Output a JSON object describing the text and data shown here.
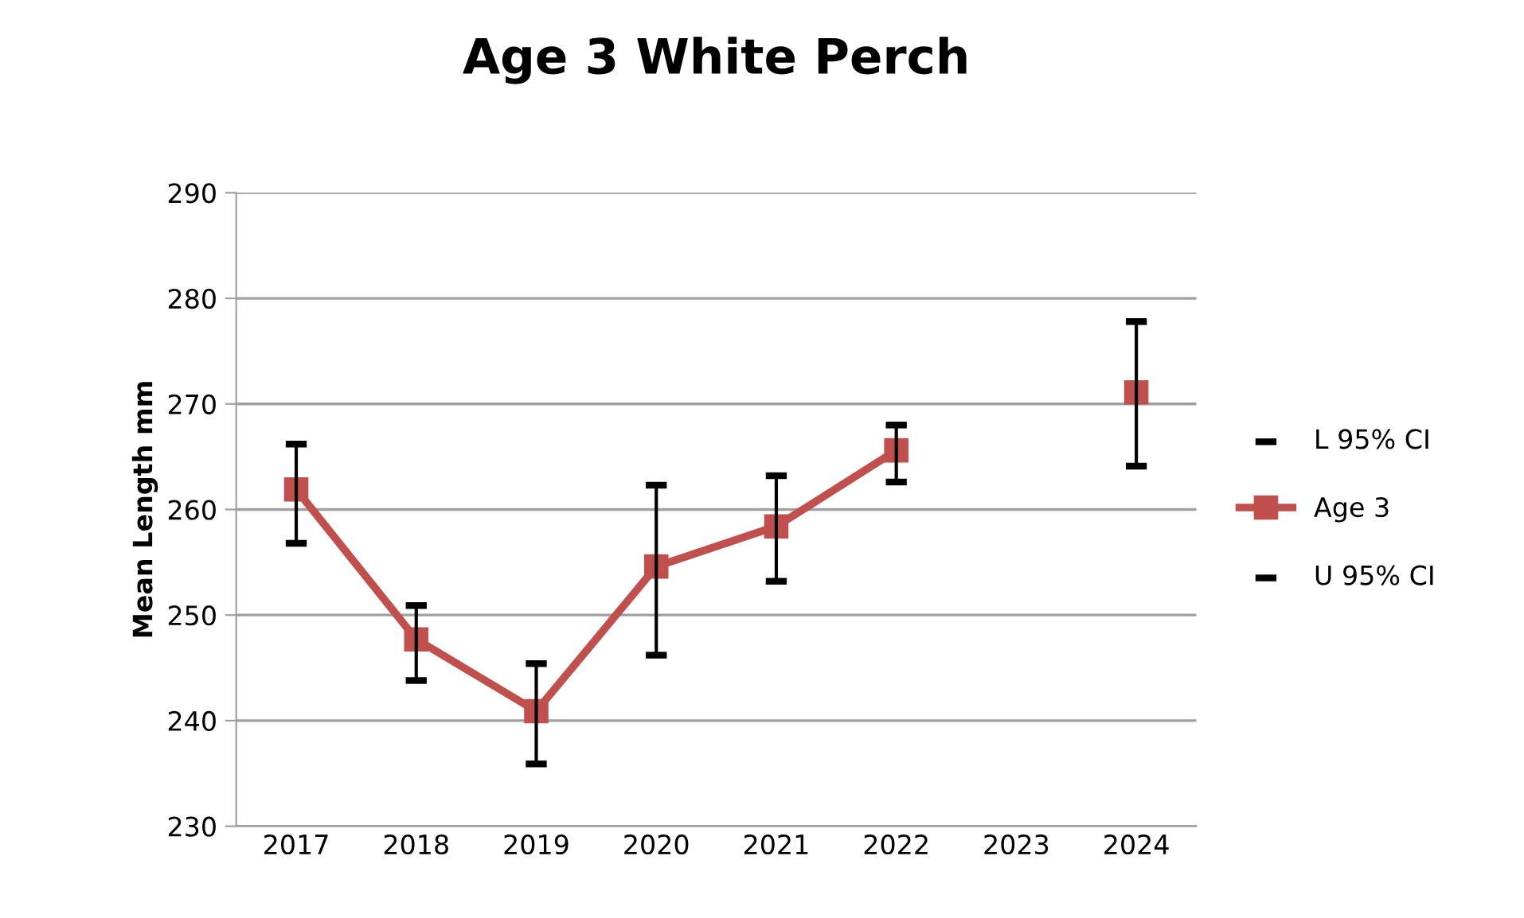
{
  "chart_data": {
    "type": "line",
    "title": "Age 3 White Perch",
    "ylabel": "Mean Length mm",
    "categories": [
      "2017",
      "2018",
      "2019",
      "2020",
      "2021",
      "2022",
      "2023",
      "2024"
    ],
    "series": [
      {
        "name": "L 95% CI",
        "type": "scatter",
        "color": "#000000",
        "values": [
          256.8,
          243.8,
          235.9,
          246.2,
          253.2,
          262.6,
          null,
          264.1
        ]
      },
      {
        "name": "Age 3",
        "marker": "square",
        "color": "#c0504d",
        "values": [
          261.9,
          247.7,
          240.9,
          254.6,
          258.4,
          265.6,
          null,
          271.1
        ]
      },
      {
        "name": "U 95% CI",
        "type": "scatter",
        "color": "#000000",
        "values": [
          266.2,
          250.9,
          245.4,
          262.3,
          263.2,
          268.0,
          null,
          277.8
        ]
      }
    ],
    "ylim": [
      230,
      290
    ],
    "yticks": [
      230,
      240,
      250,
      260,
      270,
      280,
      290
    ],
    "grid": "y",
    "legend": "right"
  }
}
